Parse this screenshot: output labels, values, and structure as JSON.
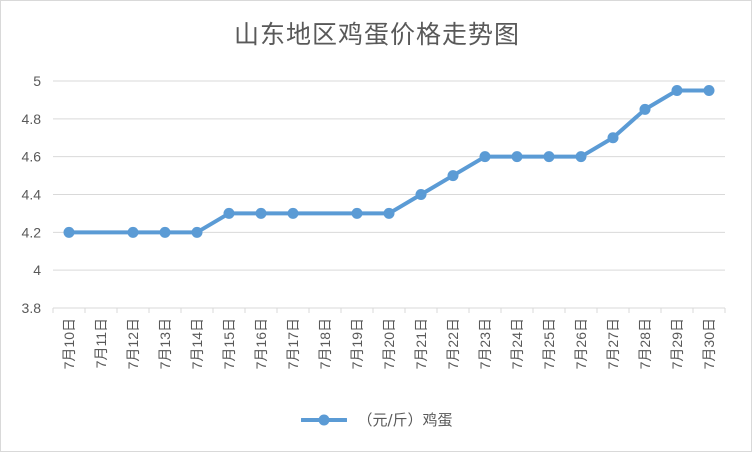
{
  "chart_data": {
    "type": "line",
    "title": "山东地区鸡蛋价格走势图",
    "xlabel": "",
    "ylabel": "",
    "categories": [
      "7月10日",
      "7月11日",
      "7月12日",
      "7月13日",
      "7月14日",
      "7月15日",
      "7月16日",
      "7月17日",
      "7月18日",
      "7月19日",
      "7月20日",
      "7月21日",
      "7月22日",
      "7月23日",
      "7月24日",
      "7月25日",
      "7月26日",
      "7月27日",
      "7月28日",
      "7月29日",
      "7月30日"
    ],
    "series": [
      {
        "name": "（元/斤）鸡蛋",
        "color": "#5b9bd5",
        "values": [
          4.2,
          null,
          4.2,
          4.2,
          4.2,
          4.3,
          4.3,
          4.3,
          null,
          4.3,
          4.3,
          4.4,
          4.5,
          4.6,
          4.6,
          4.6,
          4.6,
          4.7,
          4.85,
          4.95,
          4.95
        ]
      }
    ],
    "ylim": [
      3.8,
      5.0
    ],
    "yticks": [
      "3.8",
      "4",
      "4.2",
      "4.4",
      "4.6",
      "4.8",
      "5"
    ],
    "grid": true,
    "legend": "bottom"
  }
}
